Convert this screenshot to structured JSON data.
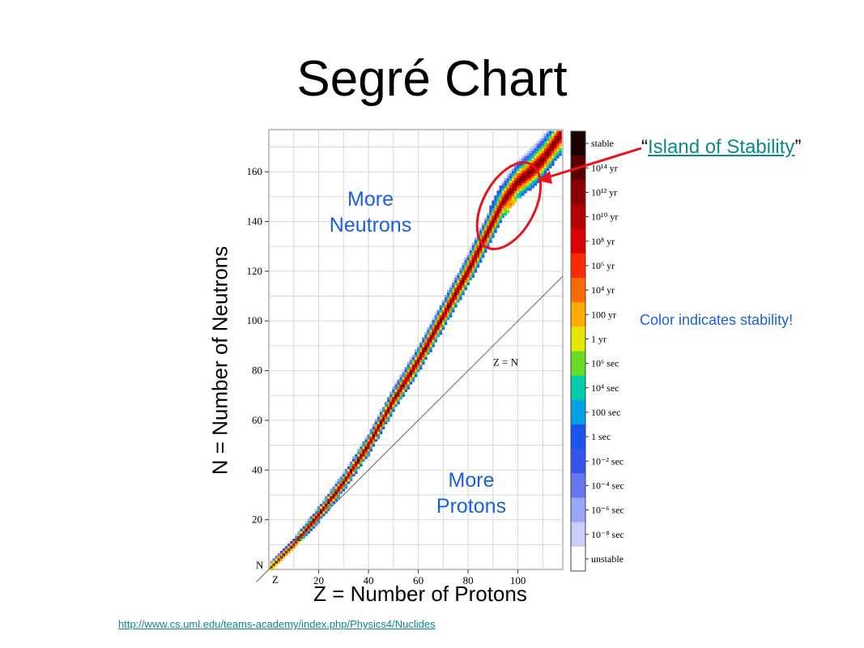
{
  "slide": {
    "title": "Segré Chart",
    "source_link": "http://www.cs.uml.edu/teams-academy/index.php/Physics4/Nuclides"
  },
  "annotations": {
    "island_quote_open": "“",
    "island_link": "Island of Stability",
    "island_quote_close": "”",
    "stability_note": "Color indicates stability!",
    "more_neutrons_1": "More",
    "more_neutrons_2": "Neutrons",
    "more_protons_1": "More",
    "more_protons_2": "Protons",
    "zn_line_label": "Z = N"
  },
  "chart_data": {
    "type": "heatmap",
    "title": "Segré Chart",
    "xlabel": "Z = Number of Protons",
    "ylabel": "N = Number of Neutrons",
    "x_axis_short": "Z",
    "y_axis_short": "N",
    "xlim": [
      0,
      118
    ],
    "ylim": [
      0,
      177
    ],
    "xticks": [
      20,
      40,
      60,
      80,
      100
    ],
    "yticks": [
      20,
      40,
      60,
      80,
      100,
      120,
      140,
      160
    ],
    "grid": true,
    "reference_line": {
      "label": "Z = N",
      "slope": 1
    },
    "stability_valley": [
      {
        "z": 0,
        "n": 0
      },
      {
        "z": 10,
        "n": 10
      },
      {
        "z": 20,
        "n": 22
      },
      {
        "z": 30,
        "n": 35
      },
      {
        "z": 40,
        "n": 50
      },
      {
        "z": 50,
        "n": 68
      },
      {
        "z": 60,
        "n": 84
      },
      {
        "z": 70,
        "n": 102
      },
      {
        "z": 80,
        "n": 120
      },
      {
        "z": 83,
        "n": 126
      },
      {
        "z": 90,
        "n": 140
      },
      {
        "z": 94,
        "n": 148
      },
      {
        "z": 100,
        "n": 156
      },
      {
        "z": 105,
        "n": 160
      },
      {
        "z": 110,
        "n": 165
      },
      {
        "z": 118,
        "n": 176
      }
    ],
    "island_of_stability": {
      "z_center": 97,
      "n_center": 147
    },
    "colorbar": [
      {
        "label": "stable",
        "color": "#1a0000"
      },
      {
        "label": "10¹⁴ yr",
        "color": "#5a0000"
      },
      {
        "label": "10¹² yr",
        "color": "#8b0000"
      },
      {
        "label": "10¹⁰ yr",
        "color": "#b50000"
      },
      {
        "label": "10⁸ yr",
        "color": "#dd0000"
      },
      {
        "label": "10⁶ yr",
        "color": "#ff2a00"
      },
      {
        "label": "10⁴ yr",
        "color": "#ff6a00"
      },
      {
        "label": "100 yr",
        "color": "#ffaa00"
      },
      {
        "label": "1 yr",
        "color": "#e6e600"
      },
      {
        "label": "10⁶ sec",
        "color": "#66dd22"
      },
      {
        "label": "10⁴ sec",
        "color": "#00ccaa"
      },
      {
        "label": "100 sec",
        "color": "#00a0e6"
      },
      {
        "label": "1 sec",
        "color": "#1a55ee"
      },
      {
        "label": "10⁻² sec",
        "color": "#3355ee"
      },
      {
        "label": "10⁻⁴ sec",
        "color": "#6677f2"
      },
      {
        "label": "10⁻⁶ sec",
        "color": "#99a6f5"
      },
      {
        "label": "10⁻⁸ sec",
        "color": "#c8cef9"
      },
      {
        "label": "unstable",
        "color": "#ffffff"
      }
    ]
  }
}
